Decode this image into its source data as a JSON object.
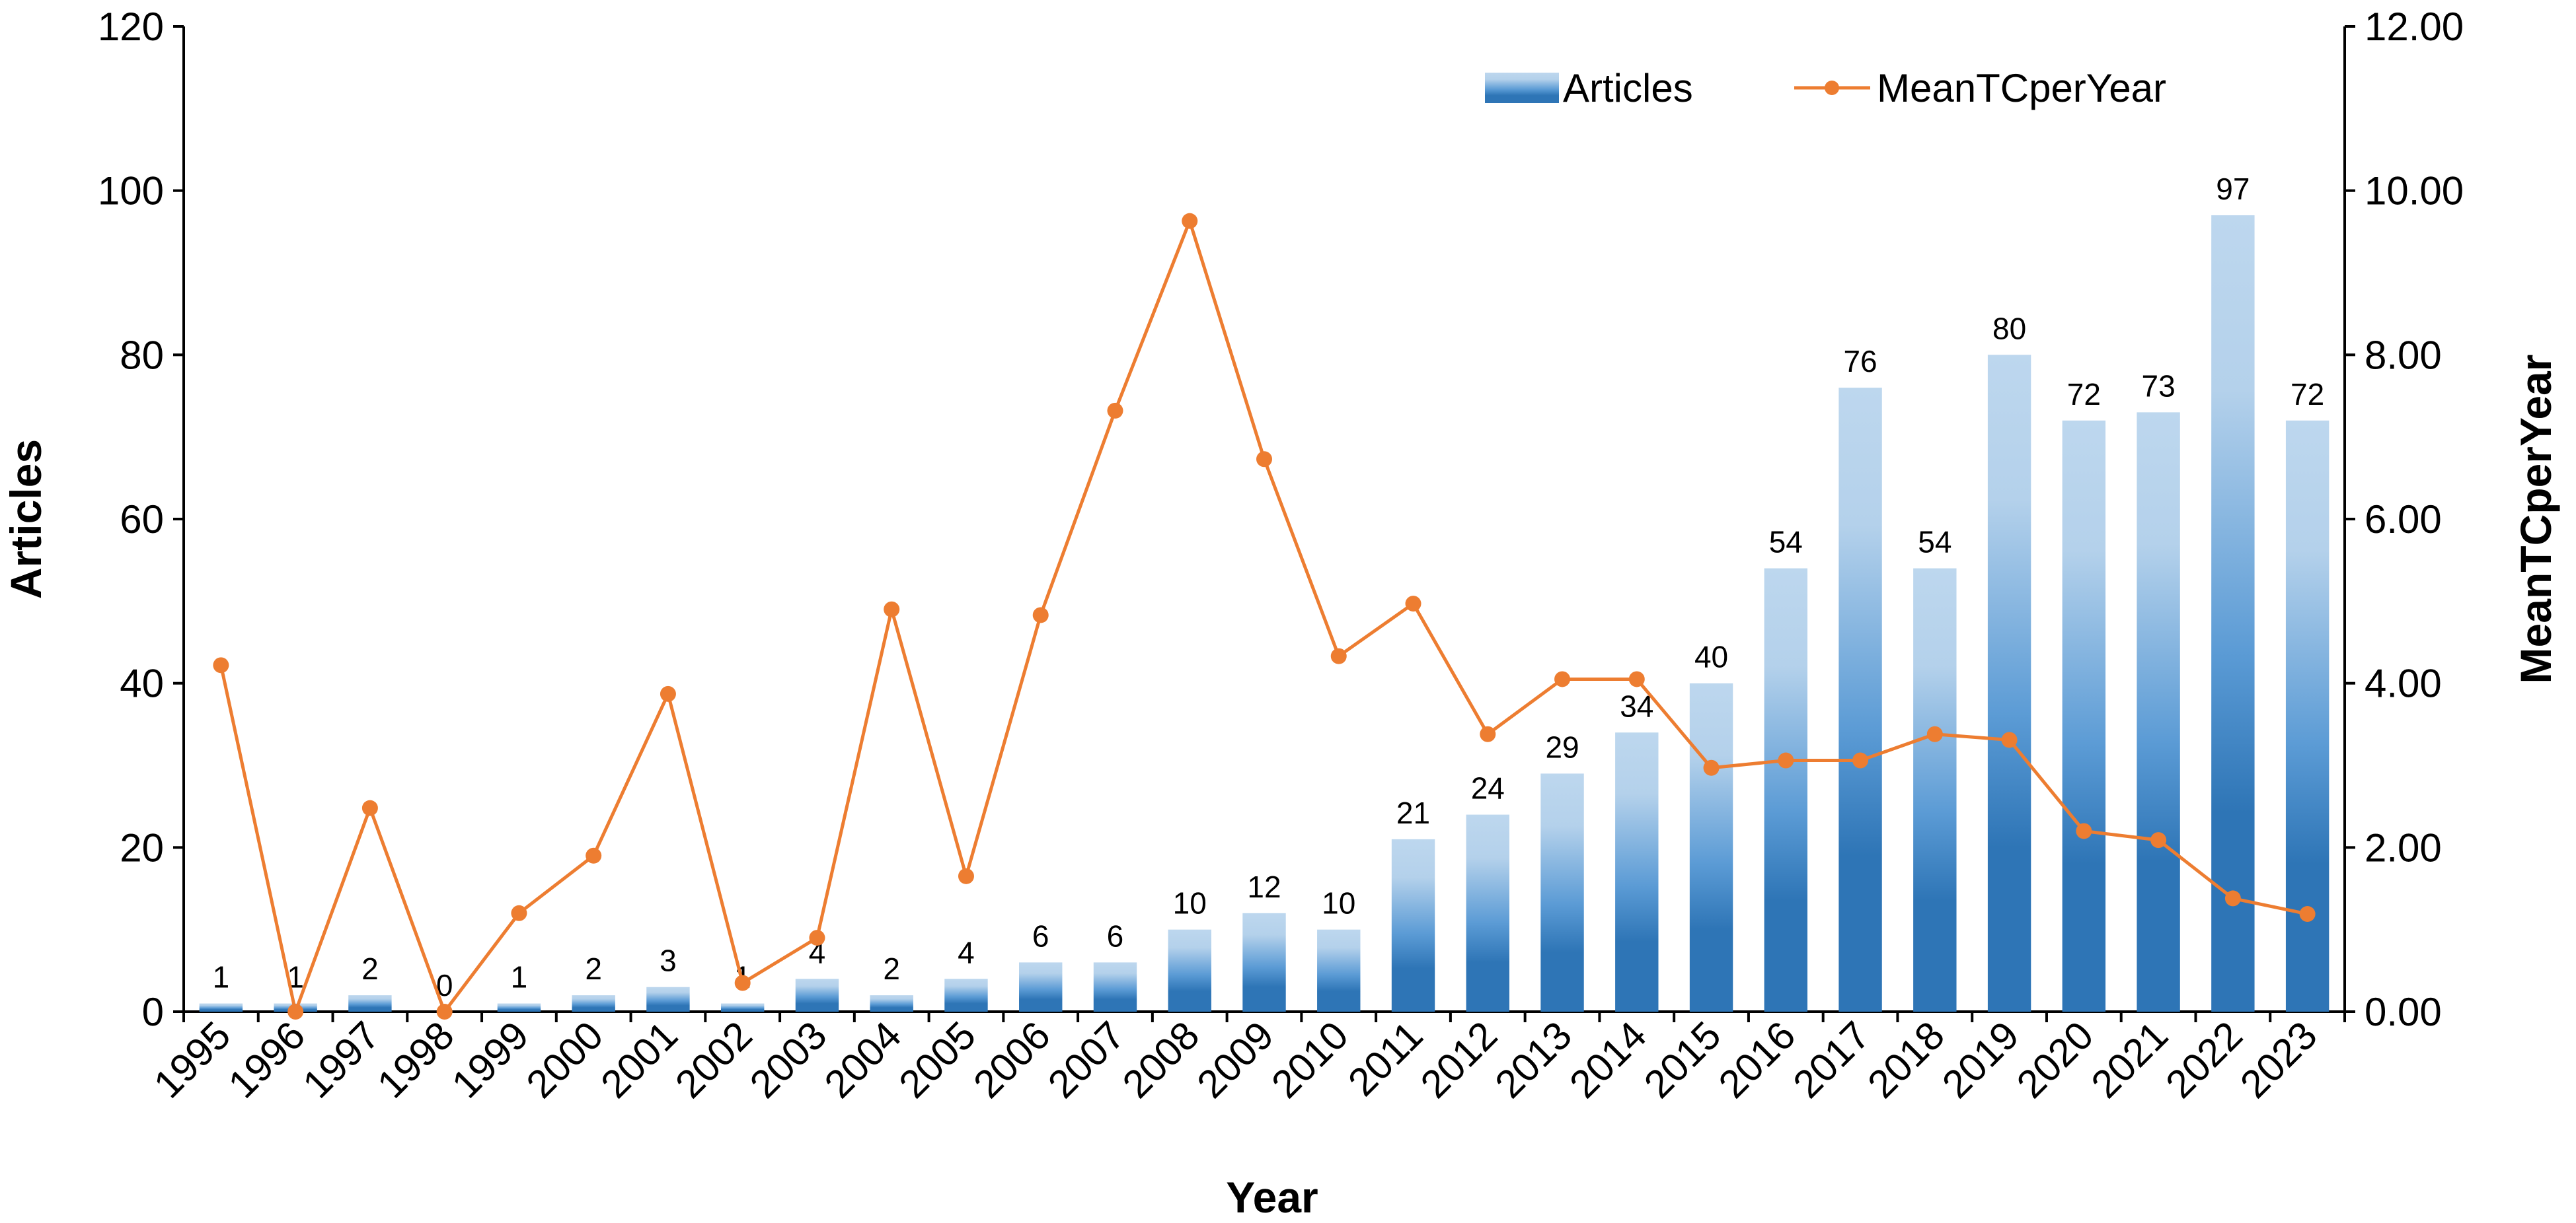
{
  "chart_data": {
    "type": "bar",
    "categories": [
      "1995",
      "1996",
      "1997",
      "1998",
      "1999",
      "2000",
      "2001",
      "2002",
      "2003",
      "2004",
      "2005",
      "2006",
      "2007",
      "2008",
      "2009",
      "2010",
      "2011",
      "2012",
      "2013",
      "2014",
      "2015",
      "2016",
      "2017",
      "2018",
      "2019",
      "2020",
      "2021",
      "2022",
      "2023"
    ],
    "series": [
      {
        "name": "Articles",
        "type": "bar",
        "axis": "left",
        "color": "#2e75b6",
        "values": [
          1,
          1,
          2,
          0,
          1,
          2,
          3,
          1,
          4,
          2,
          4,
          6,
          6,
          10,
          12,
          10,
          21,
          24,
          29,
          34,
          40,
          54,
          76,
          54,
          80,
          72,
          73,
          97,
          72
        ]
      },
      {
        "name": "MeanTCperYear",
        "type": "line",
        "axis": "right",
        "color": "#ed7d31",
        "values": [
          4.22,
          0.0,
          2.48,
          0.0,
          1.2,
          1.9,
          3.87,
          0.35,
          0.9,
          4.9,
          1.65,
          4.83,
          7.32,
          9.63,
          6.73,
          4.33,
          4.97,
          3.38,
          4.05,
          4.05,
          2.97,
          3.06,
          3.06,
          3.38,
          3.31,
          2.2,
          2.09,
          1.38,
          1.19
        ]
      }
    ],
    "xlabel": "Year",
    "ylabel": "Articles",
    "y2label": "MeanTCperYear",
    "ylim": [
      0,
      120
    ],
    "y2lim": [
      0,
      12
    ],
    "yticks": [
      "0",
      "20",
      "40",
      "60",
      "80",
      "100",
      "120"
    ],
    "y2ticks": [
      "0.00",
      "2.00",
      "4.00",
      "6.00",
      "8.00",
      "10.00",
      "12.00"
    ],
    "legend": "top-right",
    "grid": false,
    "data_labels": true
  }
}
